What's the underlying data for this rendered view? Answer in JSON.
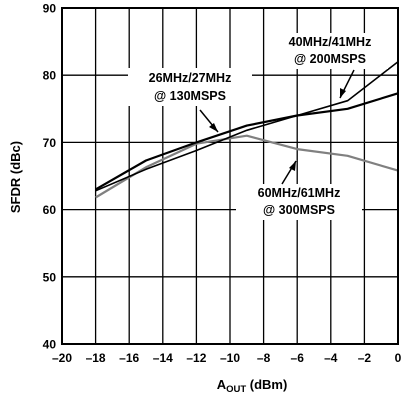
{
  "chart_data": {
    "type": "line",
    "xlabel_main": "A",
    "xlabel_sub": "OUT",
    "xlabel_unit": " (dBm)",
    "ylabel": "SFDR (dBc)",
    "xlim": [
      -20,
      0
    ],
    "ylim": [
      40,
      90
    ],
    "x_ticks": [
      -20,
      -18,
      -16,
      -14,
      -12,
      -10,
      -8,
      -6,
      -4,
      -2,
      0
    ],
    "y_ticks": [
      40,
      50,
      60,
      70,
      80,
      90
    ],
    "x_tick_labels": [
      "–20",
      "–18",
      "–16",
      "–14",
      "–12",
      "–10",
      "–8",
      "–6",
      "–4",
      "–2",
      "0"
    ],
    "y_tick_labels": [
      "40",
      "50",
      "60",
      "70",
      "80",
      "90"
    ],
    "grid": true,
    "series": [
      {
        "name": "26MHz/27MHz @ 130MSPS",
        "color": "#000000",
        "width": 2.2,
        "x": [
          -18,
          -15,
          -12,
          -9,
          -6,
          -3,
          0
        ],
        "y": [
          63,
          67.3,
          70,
          72.5,
          74,
          75,
          77.3
        ]
      },
      {
        "name": "40MHz/41MHz @ 200MSPS",
        "color": "#000000",
        "width": 1.6,
        "x": [
          -18,
          -15,
          -12,
          -9,
          -6,
          -3,
          0
        ],
        "y": [
          62.8,
          66,
          68.8,
          71.8,
          74,
          76.2,
          82
        ]
      },
      {
        "name": "60MHz/61MHz @ 300MSPS",
        "color": "#808080",
        "width": 2.2,
        "x": [
          -18,
          -15,
          -12,
          -9,
          -6,
          -3,
          0
        ],
        "y": [
          61.8,
          66.3,
          69.8,
          71,
          69,
          68,
          65.8
        ]
      }
    ],
    "annotations": [
      {
        "line1": "26MHz/27MHz",
        "line2": "@ 130MSPS",
        "series_index": 0
      },
      {
        "line1": "40MHz/41MHz",
        "line2": "@ 200MSPS",
        "series_index": 1
      },
      {
        "line1": "60MHz/61MHz",
        "line2": "@ 300MSPS",
        "series_index": 2
      }
    ]
  }
}
